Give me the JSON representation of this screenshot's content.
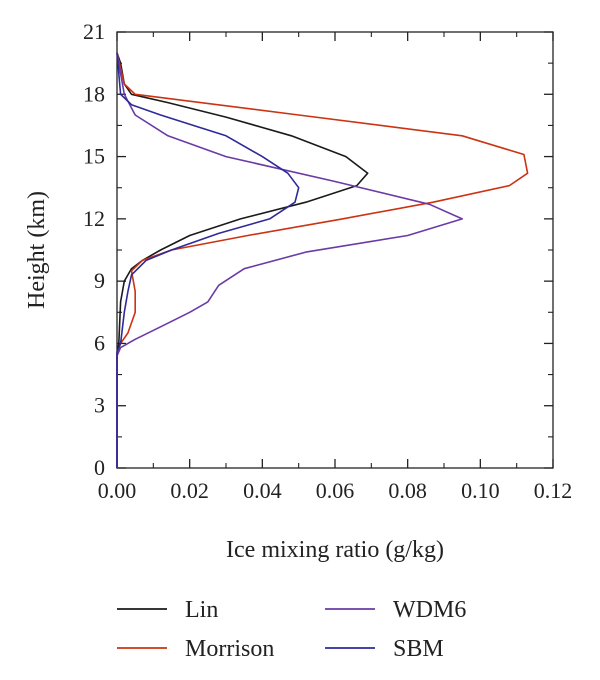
{
  "chart_data": {
    "type": "line",
    "xlabel": "Ice mixing ratio (g/kg)",
    "ylabel": "Height (km)",
    "xlim": [
      0,
      0.12
    ],
    "ylim": [
      0,
      21
    ],
    "xticks": [
      "0.00",
      "0.02",
      "0.04",
      "0.06",
      "0.08",
      "0.10",
      "0.12"
    ],
    "yticks": [
      "0",
      "3",
      "6",
      "9",
      "12",
      "15",
      "18",
      "21"
    ],
    "grid": false,
    "legend_position": "bottom",
    "series": [
      {
        "name": "Lin",
        "color": "#1a1a1a",
        "points": [
          [
            0.0,
            0.0
          ],
          [
            0.0,
            5.5
          ],
          [
            0.0005,
            6.0
          ],
          [
            0.001,
            8.0
          ],
          [
            0.002,
            9.0
          ],
          [
            0.004,
            9.6
          ],
          [
            0.007,
            10.0
          ],
          [
            0.012,
            10.5
          ],
          [
            0.02,
            11.2
          ],
          [
            0.034,
            12.0
          ],
          [
            0.052,
            12.8
          ],
          [
            0.066,
            13.6
          ],
          [
            0.069,
            14.2
          ],
          [
            0.063,
            15.0
          ],
          [
            0.048,
            16.0
          ],
          [
            0.03,
            16.9
          ],
          [
            0.014,
            17.6
          ],
          [
            0.004,
            18.0
          ],
          [
            0.002,
            18.5
          ],
          [
            0.001,
            19.5
          ],
          [
            0.0,
            20.0
          ]
        ]
      },
      {
        "name": "Morrison",
        "color": "#cc3311",
        "points": [
          [
            0.0,
            0.0
          ],
          [
            0.0,
            5.5
          ],
          [
            0.001,
            6.0
          ],
          [
            0.003,
            6.5
          ],
          [
            0.005,
            7.5
          ],
          [
            0.005,
            8.5
          ],
          [
            0.004,
            9.5
          ],
          [
            0.007,
            10.0
          ],
          [
            0.015,
            10.5
          ],
          [
            0.036,
            11.2
          ],
          [
            0.062,
            12.0
          ],
          [
            0.087,
            12.8
          ],
          [
            0.108,
            13.6
          ],
          [
            0.113,
            14.2
          ],
          [
            0.112,
            15.1
          ],
          [
            0.095,
            16.0
          ],
          [
            0.05,
            17.0
          ],
          [
            0.005,
            18.0
          ],
          [
            0.002,
            18.5
          ],
          [
            0.0,
            20.0
          ]
        ]
      },
      {
        "name": "WDM6",
        "color": "#6a3ba5",
        "points": [
          [
            0.0,
            0.0
          ],
          [
            0.0,
            5.4
          ],
          [
            0.001,
            5.8
          ],
          [
            0.005,
            6.2
          ],
          [
            0.012,
            6.8
          ],
          [
            0.02,
            7.5
          ],
          [
            0.025,
            8.0
          ],
          [
            0.028,
            8.8
          ],
          [
            0.035,
            9.6
          ],
          [
            0.052,
            10.4
          ],
          [
            0.08,
            11.2
          ],
          [
            0.095,
            12.0
          ],
          [
            0.086,
            12.7
          ],
          [
            0.06,
            13.8
          ],
          [
            0.03,
            15.0
          ],
          [
            0.014,
            16.0
          ],
          [
            0.005,
            17.0
          ],
          [
            0.002,
            18.0
          ],
          [
            0.001,
            19.0
          ],
          [
            0.0,
            20.0
          ]
        ]
      },
      {
        "name": "SBM",
        "color": "#2e2a99",
        "points": [
          [
            0.0,
            0.0
          ],
          [
            0.0,
            5.6
          ],
          [
            0.001,
            6.0
          ],
          [
            0.002,
            7.5
          ],
          [
            0.003,
            8.5
          ],
          [
            0.004,
            9.3
          ],
          [
            0.008,
            10.0
          ],
          [
            0.015,
            10.5
          ],
          [
            0.028,
            11.3
          ],
          [
            0.042,
            12.0
          ],
          [
            0.049,
            12.8
          ],
          [
            0.05,
            13.5
          ],
          [
            0.047,
            14.2
          ],
          [
            0.04,
            15.0
          ],
          [
            0.03,
            16.0
          ],
          [
            0.012,
            17.0
          ],
          [
            0.004,
            17.5
          ],
          [
            0.001,
            18.0
          ],
          [
            0.0,
            20.0
          ]
        ]
      }
    ]
  }
}
